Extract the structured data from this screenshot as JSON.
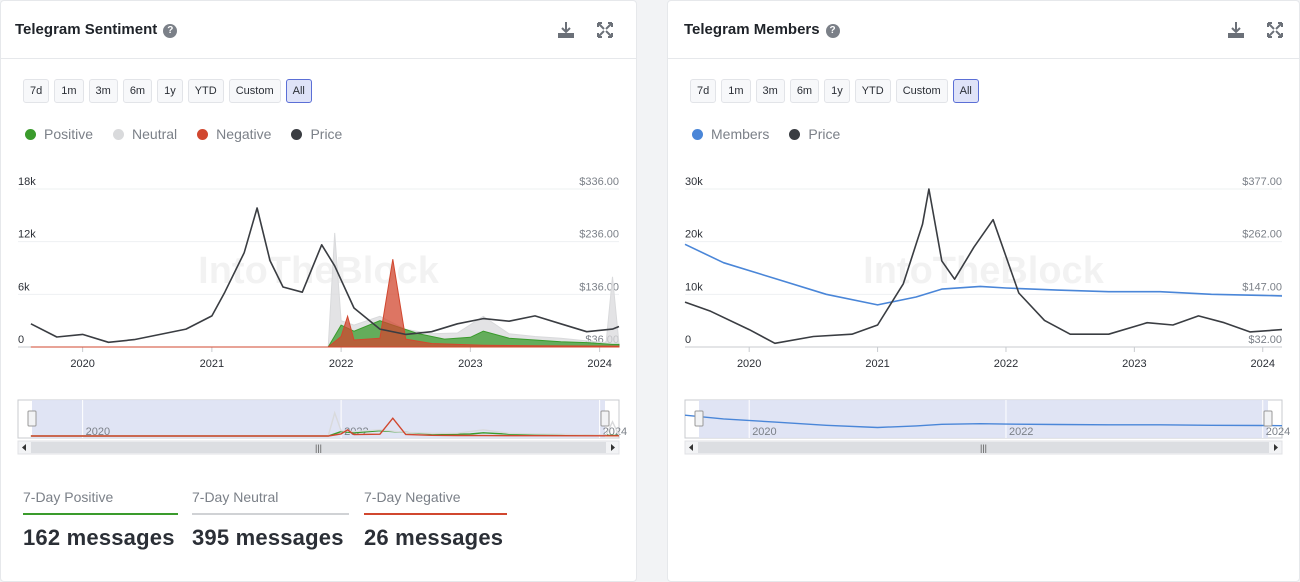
{
  "left_panel": {
    "title": "Telegram Sentiment",
    "buttons": [
      "7d",
      "1m",
      "3m",
      "6m",
      "1y",
      "YTD",
      "Custom",
      "All"
    ],
    "active_button": "All",
    "legend": [
      {
        "label": "Positive",
        "color": "#3a9b2c"
      },
      {
        "label": "Neutral",
        "color": "#d9dadc"
      },
      {
        "label": "Negative",
        "color": "#d1472f"
      },
      {
        "label": "Price",
        "color": "#3a3d42"
      }
    ],
    "stats": [
      {
        "label": "7-Day Positive",
        "value": "162 messages",
        "color": "#3a9b2c"
      },
      {
        "label": "7-Day Neutral",
        "value": "395 messages",
        "color": "#d0d2d5"
      },
      {
        "label": "7-Day Negative",
        "value": "26 messages",
        "color": "#d1472f"
      }
    ]
  },
  "right_panel": {
    "title": "Telegram Members",
    "buttons": [
      "7d",
      "1m",
      "3m",
      "6m",
      "1y",
      "YTD",
      "Custom",
      "All"
    ],
    "active_button": "All",
    "legend": [
      {
        "label": "Members",
        "color": "#4a86d8"
      },
      {
        "label": "Price",
        "color": "#3a3d42"
      }
    ]
  },
  "chart_data": [
    {
      "type": "area",
      "x_ticks": [
        "2020",
        "2021",
        "2022",
        "2023",
        "2024"
      ],
      "y_left_ticks": [
        "0",
        "6k",
        "12k",
        "18k"
      ],
      "y_right_ticks": [
        "$36.00",
        "$136.00",
        "$236.00",
        "$336.00"
      ],
      "y_left_range": [
        0,
        18000
      ],
      "y_right_range": [
        36,
        336
      ],
      "navigator_labels": [
        "2020",
        "2022",
        "2024"
      ],
      "watermark": "IntoTheBlock",
      "series": [
        {
          "name": "Price",
          "axis": "right",
          "x": [
            2019.6,
            2019.8,
            2020.0,
            2020.2,
            2020.4,
            2020.6,
            2020.8,
            2021.0,
            2021.1,
            2021.25,
            2021.35,
            2021.45,
            2021.55,
            2021.7,
            2021.85,
            2021.95,
            2022.1,
            2022.3,
            2022.5,
            2022.7,
            2022.9,
            2023.1,
            2023.3,
            2023.5,
            2023.7,
            2023.9,
            2024.1,
            2024.15
          ],
          "values": [
            80,
            55,
            60,
            45,
            50,
            60,
            70,
            95,
            140,
            215,
            300,
            200,
            150,
            140,
            230,
            190,
            110,
            70,
            60,
            65,
            80,
            90,
            85,
            95,
            80,
            65,
            70,
            75
          ]
        },
        {
          "name": "Positive",
          "axis": "left",
          "x": [
            2019.6,
            2021.9,
            2022.0,
            2022.1,
            2022.3,
            2022.4,
            2022.6,
            2022.8,
            2023.0,
            2023.1,
            2023.3,
            2023.5,
            2023.7,
            2023.9,
            2024.1,
            2024.15
          ],
          "values": [
            0,
            0,
            2500,
            1800,
            3000,
            2500,
            1500,
            900,
            1100,
            1800,
            1000,
            800,
            600,
            500,
            300,
            300
          ]
        },
        {
          "name": "Neutral",
          "axis": "left",
          "x": [
            2019.6,
            2021.9,
            2021.95,
            2022.0,
            2022.1,
            2022.3,
            2022.5,
            2022.7,
            2022.9,
            2023.1,
            2023.3,
            2023.5,
            2023.7,
            2023.9,
            2024.05,
            2024.1,
            2024.15
          ],
          "values": [
            0,
            0,
            13000,
            3000,
            2500,
            3500,
            2000,
            1500,
            1600,
            3500,
            1500,
            1200,
            1000,
            700,
            500,
            8000,
            400
          ]
        },
        {
          "name": "Negative",
          "axis": "left",
          "x": [
            2019.6,
            2021.9,
            2022.0,
            2022.05,
            2022.1,
            2022.3,
            2022.4,
            2022.5,
            2022.7,
            2022.9,
            2023.1,
            2023.5,
            2024.15
          ],
          "values": [
            0,
            0,
            1200,
            3500,
            800,
            1000,
            10000,
            900,
            400,
            300,
            200,
            150,
            100
          ]
        }
      ]
    },
    {
      "type": "line",
      "x_ticks": [
        "2020",
        "2021",
        "2022",
        "2023",
        "2024"
      ],
      "y_left_ticks": [
        "0",
        "10k",
        "20k",
        "30k"
      ],
      "y_right_ticks": [
        "$32.00",
        "$147.00",
        "$262.00",
        "$377.00"
      ],
      "y_left_range": [
        0,
        30000
      ],
      "y_right_range": [
        32,
        377
      ],
      "navigator_labels": [
        "2020",
        "2022",
        "2024"
      ],
      "watermark": "IntoTheBlock",
      "series": [
        {
          "name": "Members",
          "axis": "left",
          "x": [
            2019.5,
            2019.8,
            2020.2,
            2020.6,
            2021.0,
            2021.3,
            2021.5,
            2021.8,
            2022.0,
            2022.4,
            2022.8,
            2023.2,
            2023.6,
            2024.0,
            2024.15
          ],
          "values": [
            19500,
            16000,
            13000,
            10000,
            8000,
            9500,
            11000,
            11500,
            11200,
            10800,
            10500,
            10500,
            10000,
            9800,
            9700
          ]
        },
        {
          "name": "Price",
          "axis": "right",
          "x": [
            2019.5,
            2019.7,
            2020.0,
            2020.2,
            2020.5,
            2020.8,
            2021.0,
            2021.2,
            2021.35,
            2021.4,
            2021.5,
            2021.6,
            2021.75,
            2021.9,
            2022.1,
            2022.3,
            2022.5,
            2022.8,
            2023.1,
            2023.3,
            2023.5,
            2023.7,
            2023.9,
            2024.15
          ],
          "values": [
            130,
            110,
            70,
            40,
            55,
            60,
            80,
            170,
            300,
            377,
            220,
            180,
            250,
            310,
            150,
            90,
            60,
            60,
            85,
            80,
            100,
            85,
            65,
            70
          ]
        }
      ]
    }
  ]
}
